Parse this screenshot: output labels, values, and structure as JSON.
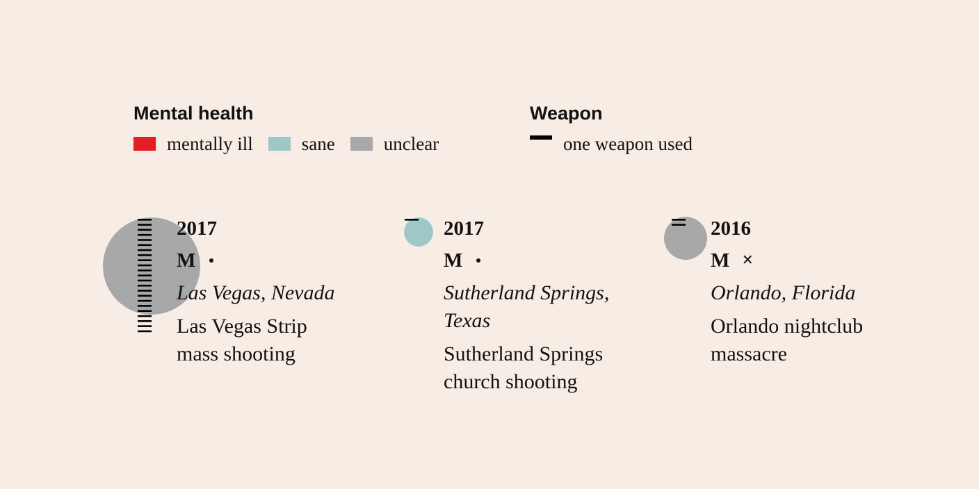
{
  "legend": {
    "mental_health_title": "Mental health",
    "mental_health_items": [
      {
        "label": "mentally ill",
        "color": "#e31f26"
      },
      {
        "label": "sane",
        "color": "#9fc7c6"
      },
      {
        "label": "unclear",
        "color": "#a6a8a9"
      }
    ],
    "weapon_title": "Weapon",
    "weapon_label": "one weapon used"
  },
  "chart_data": {
    "type": "scatter",
    "cases": [
      {
        "year": "2017",
        "gender": "M",
        "status": "dot",
        "location": "Las Vegas, Nevada",
        "name": "Las Vegas Strip mass shooting",
        "name_lines": [
          "Las Vegas Strip",
          "mass shooting"
        ],
        "mental_health": "unclear",
        "circle_color": "#a6a8a9",
        "relative_size": 70,
        "weapons": 23
      },
      {
        "year": "2017",
        "gender": "M",
        "status": "dot",
        "location": "Sutherland Springs, Texas",
        "location_lines": [
          "Sutherland Springs,",
          "Texas"
        ],
        "name": "Sutherland Springs church shooting",
        "name_lines": [
          "Sutherland Springs",
          "church shooting"
        ],
        "mental_health": "sane",
        "circle_color": "#9fc7c6",
        "relative_size": 21,
        "weapons": 1
      },
      {
        "year": "2016",
        "gender": "M",
        "status": "×",
        "location": "Orlando, Florida",
        "name": "Orlando nightclub massacre",
        "name_lines": [
          "Orlando nightclub",
          "massacre"
        ],
        "mental_health": "unclear",
        "circle_color": "#a6a8a9",
        "relative_size": 31,
        "weapons": 2
      }
    ]
  }
}
